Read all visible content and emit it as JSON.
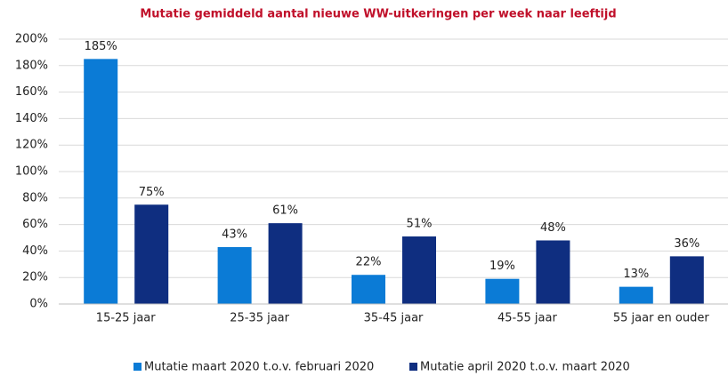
{
  "chart_data": {
    "type": "bar",
    "title": "Mutatie gemiddeld aantal nieuwe WW-uitkeringen per week naar leeftijd",
    "categories": [
      "15-25 jaar",
      "25-35 jaar",
      "35-45 jaar",
      "45-55 jaar",
      "55 jaar en ouder"
    ],
    "series": [
      {
        "name": "Mutatie maart 2020 t.o.v. februari 2020",
        "color": "#0b7bd6",
        "values": [
          185,
          43,
          22,
          19,
          13
        ],
        "value_labels": [
          "185%",
          "43%",
          "22%",
          "19%",
          "13%"
        ]
      },
      {
        "name": "Mutatie april 2020 t.o.v. maart 2020",
        "color": "#0f2e80",
        "values": [
          75,
          61,
          51,
          48,
          36
        ],
        "value_labels": [
          "75%",
          "61%",
          "51%",
          "48%",
          "36%"
        ]
      }
    ],
    "ylim": [
      0,
      200
    ],
    "yticks": [
      {
        "value": 0,
        "label": "0%"
      },
      {
        "value": 20,
        "label": "20%"
      },
      {
        "value": 40,
        "label": "40%"
      },
      {
        "value": 60,
        "label": "60%"
      },
      {
        "value": 80,
        "label": "80%"
      },
      {
        "value": 100,
        "label": "100%"
      },
      {
        "value": 120,
        "label": "120%"
      },
      {
        "value": 140,
        "label": "140%"
      },
      {
        "value": 160,
        "label": "160%"
      },
      {
        "value": 180,
        "label": "180%"
      },
      {
        "value": 200,
        "label": "200%"
      }
    ],
    "grid": true,
    "legend": "bottom"
  }
}
